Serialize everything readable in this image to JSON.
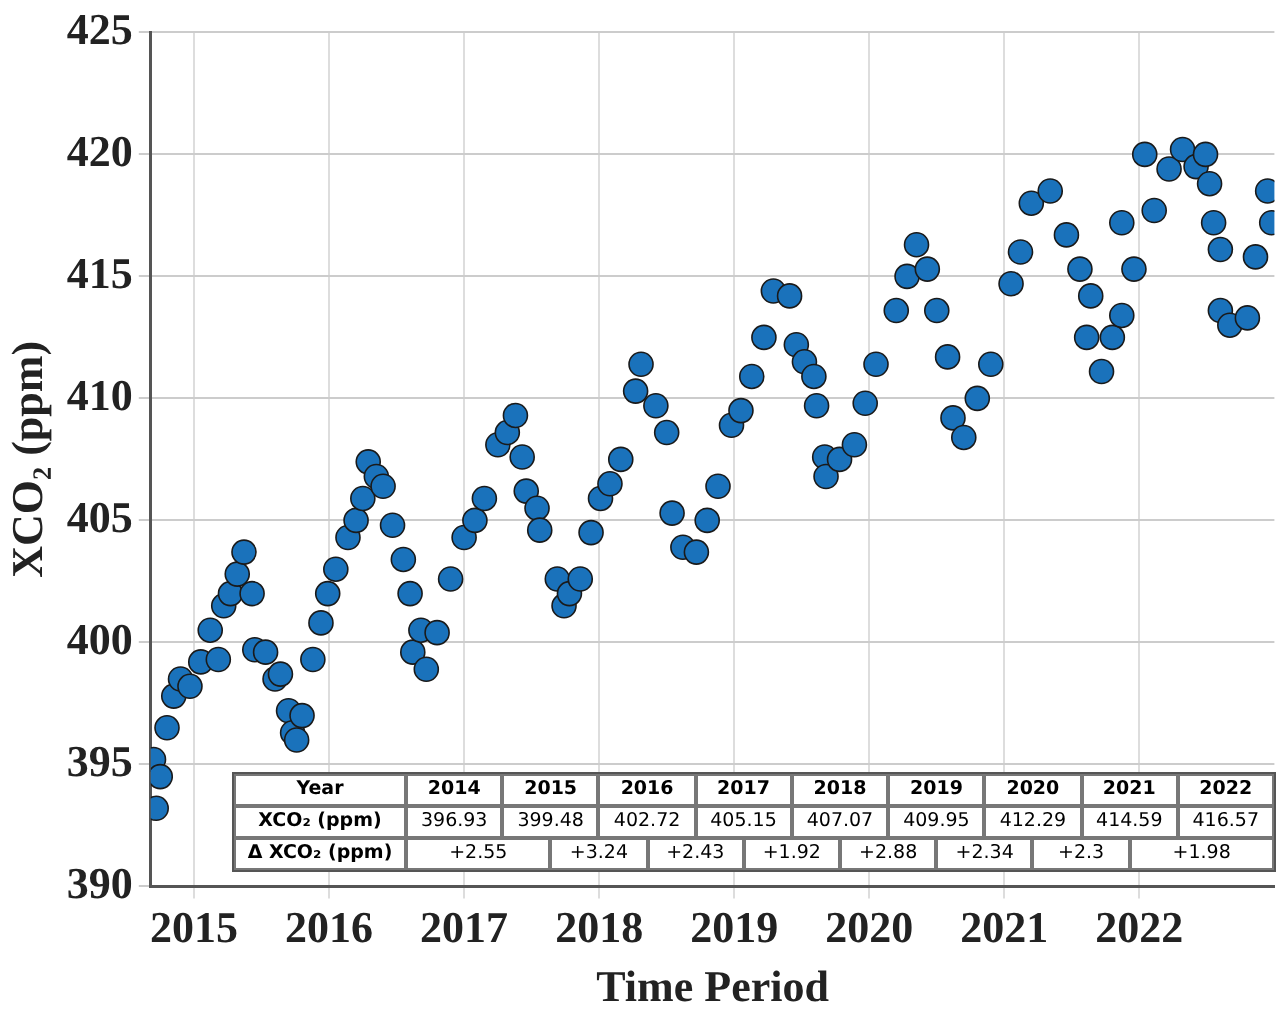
{
  "chart_data": {
    "type": "scatter",
    "xlabel": "Time Period",
    "ylabel": "XCO₂ (ppm)",
    "x": [
      2014.7,
      2014.72,
      2014.75,
      2014.8,
      2014.85,
      2014.9,
      2014.97,
      2015.05,
      2015.12,
      2015.18,
      2015.22,
      2015.27,
      2015.32,
      2015.37,
      2015.43,
      2015.45,
      2015.53,
      2015.6,
      2015.64,
      2015.7,
      2015.73,
      2015.76,
      2015.8,
      2015.88,
      2015.94,
      2015.99,
      2016.05,
      2016.14,
      2016.2,
      2016.25,
      2016.29,
      2016.35,
      2016.4,
      2016.47,
      2016.55,
      2016.6,
      2016.62,
      2016.68,
      2016.72,
      2016.8,
      2016.9,
      2017.0,
      2017.08,
      2017.15,
      2017.25,
      2017.32,
      2017.38,
      2017.43,
      2017.46,
      2017.54,
      2017.56,
      2017.69,
      2017.74,
      2017.78,
      2017.86,
      2017.94,
      2018.01,
      2018.08,
      2018.16,
      2018.27,
      2018.31,
      2018.42,
      2018.5,
      2018.54,
      2018.62,
      2018.72,
      2018.8,
      2018.88,
      2018.98,
      2019.05,
      2019.13,
      2019.22,
      2019.29,
      2019.41,
      2019.46,
      2019.52,
      2019.59,
      2019.61,
      2019.67,
      2019.68,
      2019.78,
      2019.89,
      2019.97,
      2020.05,
      2020.2,
      2020.28,
      2020.35,
      2020.43,
      2020.5,
      2020.58,
      2020.62,
      2020.7,
      2020.8,
      2020.9,
      2021.05,
      2021.12,
      2021.2,
      2021.34,
      2021.46,
      2021.56,
      2021.61,
      2021.64,
      2021.72,
      2021.8,
      2021.87,
      2021.87,
      2021.96,
      2022.04,
      2022.11,
      2022.22,
      2022.32,
      2022.42,
      2022.49,
      2022.52,
      2022.55,
      2022.6,
      2022.6,
      2022.67,
      2022.8,
      2022.86,
      2022.95,
      2022.98
    ],
    "values": [
      395.2,
      393.2,
      394.5,
      396.5,
      397.8,
      398.5,
      398.2,
      399.2,
      400.5,
      399.3,
      401.5,
      402.0,
      402.8,
      403.7,
      402.0,
      399.7,
      399.6,
      398.5,
      398.7,
      397.2,
      396.3,
      396.0,
      397.0,
      399.3,
      400.8,
      402.0,
      403.0,
      404.3,
      405.0,
      405.9,
      407.4,
      406.8,
      406.4,
      404.8,
      403.4,
      402.0,
      399.6,
      400.5,
      398.9,
      400.4,
      402.6,
      404.3,
      405.0,
      405.9,
      408.1,
      408.6,
      409.3,
      407.6,
      406.2,
      405.5,
      404.6,
      402.6,
      401.5,
      402.0,
      402.6,
      404.5,
      405.9,
      406.5,
      407.5,
      410.3,
      411.4,
      409.7,
      408.6,
      405.3,
      403.9,
      403.7,
      405.0,
      406.4,
      408.9,
      409.5,
      410.9,
      412.5,
      414.4,
      414.2,
      412.2,
      411.5,
      410.9,
      409.7,
      407.6,
      406.8,
      407.5,
      408.1,
      409.8,
      411.4,
      413.6,
      415.0,
      416.3,
      415.3,
      413.6,
      411.7,
      409.2,
      408.4,
      410.0,
      411.4,
      414.7,
      416.0,
      418.0,
      418.5,
      416.7,
      415.3,
      412.5,
      414.2,
      411.1,
      412.5,
      413.4,
      417.2,
      415.3,
      420.0,
      417.7,
      419.4,
      420.2,
      419.5,
      420.0,
      418.8,
      417.2,
      416.1,
      413.6,
      413.0,
      413.3,
      415.8,
      418.5,
      417.2
    ],
    "color": "#1a72bb",
    "marker": "circle",
    "grid": true,
    "legend": false,
    "xlim": [
      2014.68,
      2023.0
    ],
    "xticks": [
      2015,
      2016,
      2017,
      2018,
      2019,
      2020,
      2021,
      2022
    ],
    "ylim": [
      390,
      425
    ],
    "yticks": [
      390,
      395,
      400,
      405,
      410,
      415,
      420,
      425
    ],
    "annotations": [
      "Year",
      "2014",
      "2015",
      "2016",
      "2017",
      "2018",
      "2019",
      "2020",
      "2021",
      "2022",
      "XCO₂ (ppm)",
      "396.93",
      "399.48",
      "402.72",
      "405.15",
      "407.07",
      "409.95",
      "412.29",
      "414.59",
      "416.57",
      "Δ XCO₂ (ppm)",
      "+2.55",
      "+3.24",
      "+2.43",
      "+1.92",
      "+2.88",
      "+2.34",
      "+2.3",
      "+1.98"
    ]
  }
}
